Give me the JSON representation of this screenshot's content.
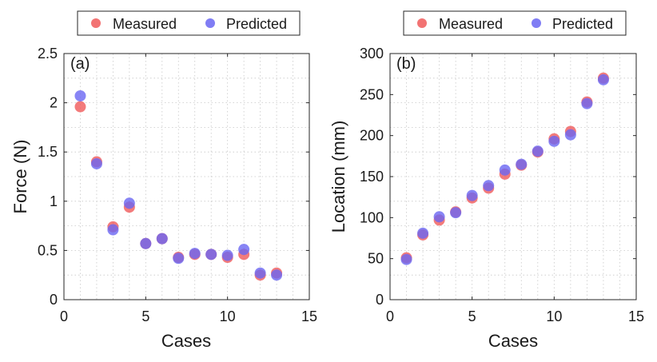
{
  "colors": {
    "measured": "#f05a5a",
    "predicted": "#6a66f2",
    "grid": "#c8c8c8",
    "axis": "#262626"
  },
  "legend": {
    "measured": "Measured",
    "predicted": "Predicted"
  },
  "chart_data": [
    {
      "type": "scatter",
      "panel_label": "(a)",
      "xlabel": "Cases",
      "ylabel": "Force (N)",
      "xlim": [
        0,
        15
      ],
      "ylim": [
        0,
        2.5
      ],
      "xticks": [
        0,
        5,
        10,
        15
      ],
      "xtick_labels": [
        "0",
        "5",
        "10",
        "15"
      ],
      "yticks": [
        0,
        0.5,
        1,
        1.5,
        2,
        2.5
      ],
      "ytick_labels": [
        "0",
        "0.5",
        "1",
        "1.5",
        "2",
        "2.5"
      ],
      "grid": true,
      "legend_position": "top-center",
      "series": [
        {
          "name": "Measured",
          "x": [
            1,
            2,
            3,
            4,
            5,
            6,
            7,
            8,
            9,
            10,
            11,
            12,
            13
          ],
          "y": [
            1.96,
            1.4,
            0.74,
            0.94,
            0.57,
            0.62,
            0.43,
            0.46,
            0.46,
            0.43,
            0.46,
            0.25,
            0.27
          ]
        },
        {
          "name": "Predicted",
          "x": [
            1,
            2,
            3,
            4,
            5,
            6,
            7,
            8,
            9,
            10,
            11,
            12,
            13
          ],
          "y": [
            2.07,
            1.38,
            0.71,
            0.98,
            0.57,
            0.62,
            0.42,
            0.47,
            0.46,
            0.45,
            0.51,
            0.27,
            0.25
          ]
        }
      ]
    },
    {
      "type": "scatter",
      "panel_label": "(b)",
      "xlabel": "Cases",
      "ylabel": "Location (mm)",
      "xlim": [
        0,
        15
      ],
      "ylim": [
        0,
        300
      ],
      "xticks": [
        0,
        5,
        10,
        15
      ],
      "xtick_labels": [
        "0",
        "5",
        "10",
        "15"
      ],
      "yticks": [
        0,
        50,
        100,
        150,
        200,
        250,
        300
      ],
      "ytick_labels": [
        "0",
        "50",
        "100",
        "150",
        "200",
        "250",
        "300"
      ],
      "grid": true,
      "legend_position": "top-center",
      "series": [
        {
          "name": "Measured",
          "x": [
            1,
            2,
            3,
            4,
            5,
            6,
            7,
            8,
            9,
            10,
            11,
            12,
            13
          ],
          "y": [
            51,
            79,
            97,
            107,
            124,
            136,
            153,
            164,
            180,
            196,
            205,
            241,
            270
          ]
        },
        {
          "name": "Predicted",
          "x": [
            1,
            2,
            3,
            4,
            5,
            6,
            7,
            8,
            9,
            10,
            11,
            12,
            13
          ],
          "y": [
            49,
            81,
            101,
            106,
            127,
            139,
            158,
            165,
            181,
            193,
            201,
            239,
            268
          ]
        }
      ]
    }
  ]
}
